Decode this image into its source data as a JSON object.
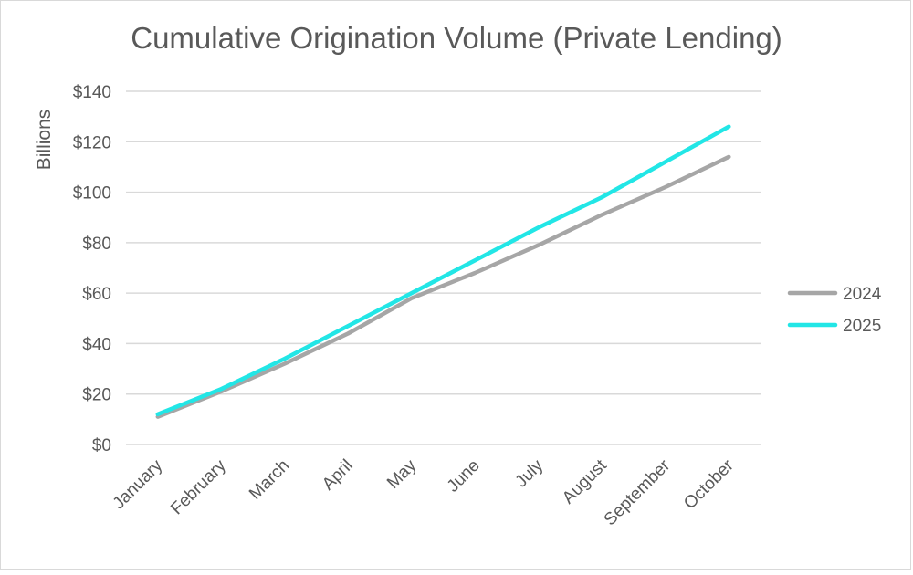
{
  "chart_data": {
    "type": "line",
    "title": "Cumulative Origination Volume (Private Lending)",
    "ylabel": "Billions",
    "xlabel": "",
    "categories": [
      "January",
      "February",
      "March",
      "April",
      "May",
      "June",
      "July",
      "August",
      "September",
      "October"
    ],
    "ylim": [
      0,
      140
    ],
    "ytick_values": [
      0,
      20,
      40,
      60,
      80,
      100,
      120,
      140
    ],
    "ytick_labels": [
      "$0",
      "$20",
      "$40",
      "$60",
      "$80",
      "$100",
      "$120",
      "$140"
    ],
    "grid": true,
    "legend_position": "right",
    "series": [
      {
        "name": "2024",
        "color": "#a6a6a6",
        "values": [
          11,
          21,
          32,
          44,
          58,
          68,
          79,
          91,
          102,
          114
        ]
      },
      {
        "name": "2025",
        "color": "#22e6e6",
        "values": [
          12,
          22,
          34,
          47,
          60,
          73,
          86,
          98,
          112,
          126
        ]
      }
    ]
  }
}
